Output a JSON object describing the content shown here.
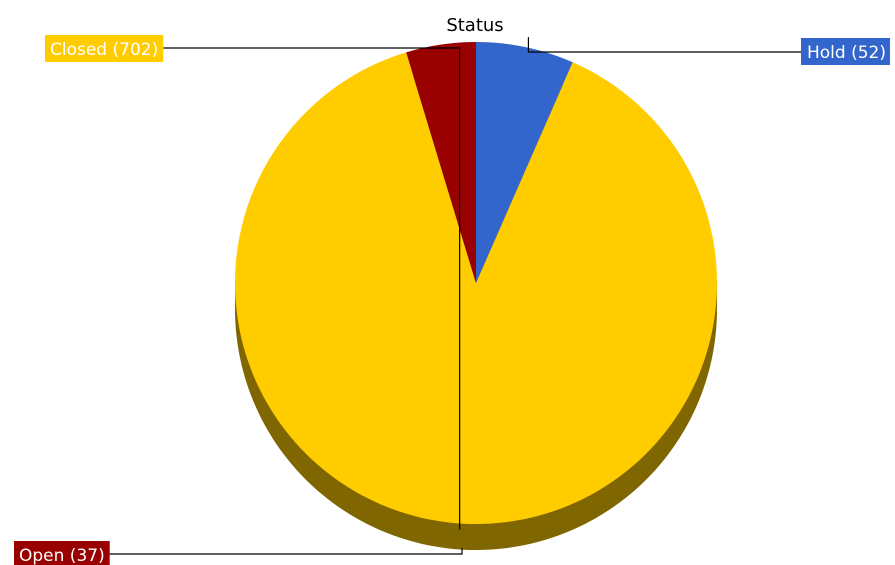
{
  "chart_data": {
    "type": "pie",
    "title": "Status",
    "slices": [
      {
        "label": "Hold (52)",
        "name": "Hold",
        "value": 52,
        "color": "#3366cc",
        "side_color": "#1f3f80",
        "label_side": "right"
      },
      {
        "label": "Closed (702)",
        "name": "Closed",
        "value": 702,
        "color": "#ffcc00",
        "side_color": "#806600",
        "label_side": "left"
      },
      {
        "label": "Open (37)",
        "name": "Open",
        "value": 37,
        "color": "#990000",
        "side_color": "#4d0000",
        "label_side": "left"
      }
    ],
    "style": "3d"
  }
}
